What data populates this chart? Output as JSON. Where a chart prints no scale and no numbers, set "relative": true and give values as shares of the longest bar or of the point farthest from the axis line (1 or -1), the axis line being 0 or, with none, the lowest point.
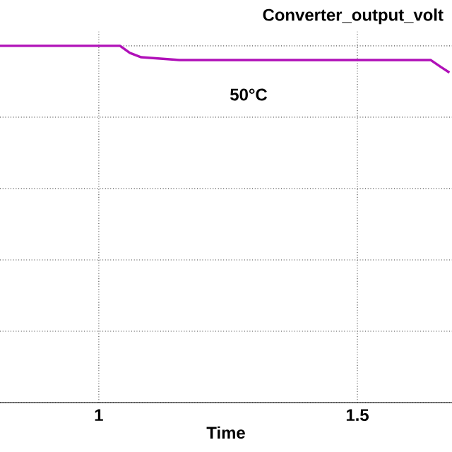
{
  "chart_data": {
    "type": "line",
    "title": "Converter_output_volt",
    "xlabel": "Time",
    "annotations": [
      "50°C"
    ],
    "x": [
      0.809,
      1.041,
      1.06,
      1.082,
      1.156,
      1.642,
      1.661,
      1.678
    ],
    "series": [
      {
        "color": "#b010b8",
        "values": [
          1,
          1,
          0.98,
          0.968,
          0.96,
          0.96,
          0.941,
          0.925
        ]
      }
    ],
    "relative": true,
    "xlim": [
      0.809,
      1.683
    ],
    "xticks": [
      1,
      1.5
    ],
    "grid": true
  }
}
